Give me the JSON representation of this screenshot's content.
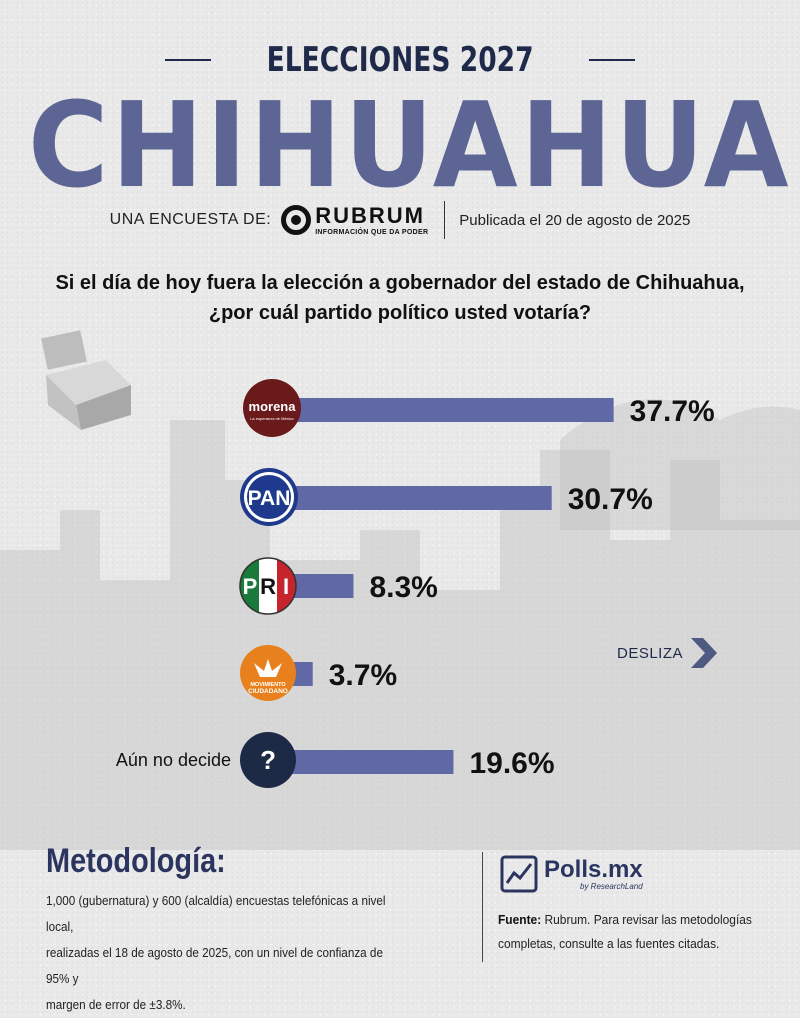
{
  "header": {
    "subtitle": "ELECCIONES 2027",
    "title": "CHIHUAHUA",
    "survey_by_label": "UNA ENCUESTA DE:",
    "pollster_name": "RUBRUM",
    "pollster_tagline": "INFORMACIÓN QUE DA PODER",
    "published": "Publicada el 20 de agosto de 2025"
  },
  "question": "Si el día de hoy fuera la elección a gobernador del estado de Chihuahua, ¿por cuál partido político usted votaría?",
  "chart_data": {
    "type": "bar",
    "orientation": "horizontal",
    "categories": [
      "morena",
      "PAN",
      "PRI",
      "Movimiento Ciudadano",
      "Aún no decide"
    ],
    "values": [
      37.7,
      30.7,
      8.3,
      3.7,
      19.6
    ],
    "value_labels": [
      "37.7%",
      "30.7%",
      "8.3%",
      "3.7%",
      "19.6%"
    ],
    "row_label": "Aún no decide",
    "logo_texts": {
      "morena": "morena",
      "morena_tagline": "La esperanza de México",
      "pan": "PAN",
      "pri": [
        "P",
        "R",
        "I"
      ],
      "mc": [
        "MOVIMIENTO",
        "CIUDADANO"
      ],
      "undecided": "?"
    },
    "colors": {
      "bar": "#6168a6",
      "morena": "#6b1a1c",
      "pan": "#1f3a8c",
      "pri_green": "#1a7a3a",
      "pri_red": "#c6242c",
      "mc": "#e8811d",
      "undecided": "#1c2a45"
    }
  },
  "swipe_label": "DESLIZA",
  "methodology": {
    "title": "Metodología:",
    "lines": [
      "1,000 (gubernatura) y 600 (alcaldía) encuestas telefónicas a nivel local,",
      "realizadas el 18 de agosto de 2025, con un nivel de confianza de 95% y",
      "margen de error de ±3.8%."
    ]
  },
  "footer": {
    "brand": "Polls.mx",
    "brand_sub": "by ResearchLand",
    "source_label": "Fuente:",
    "source_text": " Rubrum. Para revisar las metodologías completas, consulte a las fuentes citadas."
  }
}
